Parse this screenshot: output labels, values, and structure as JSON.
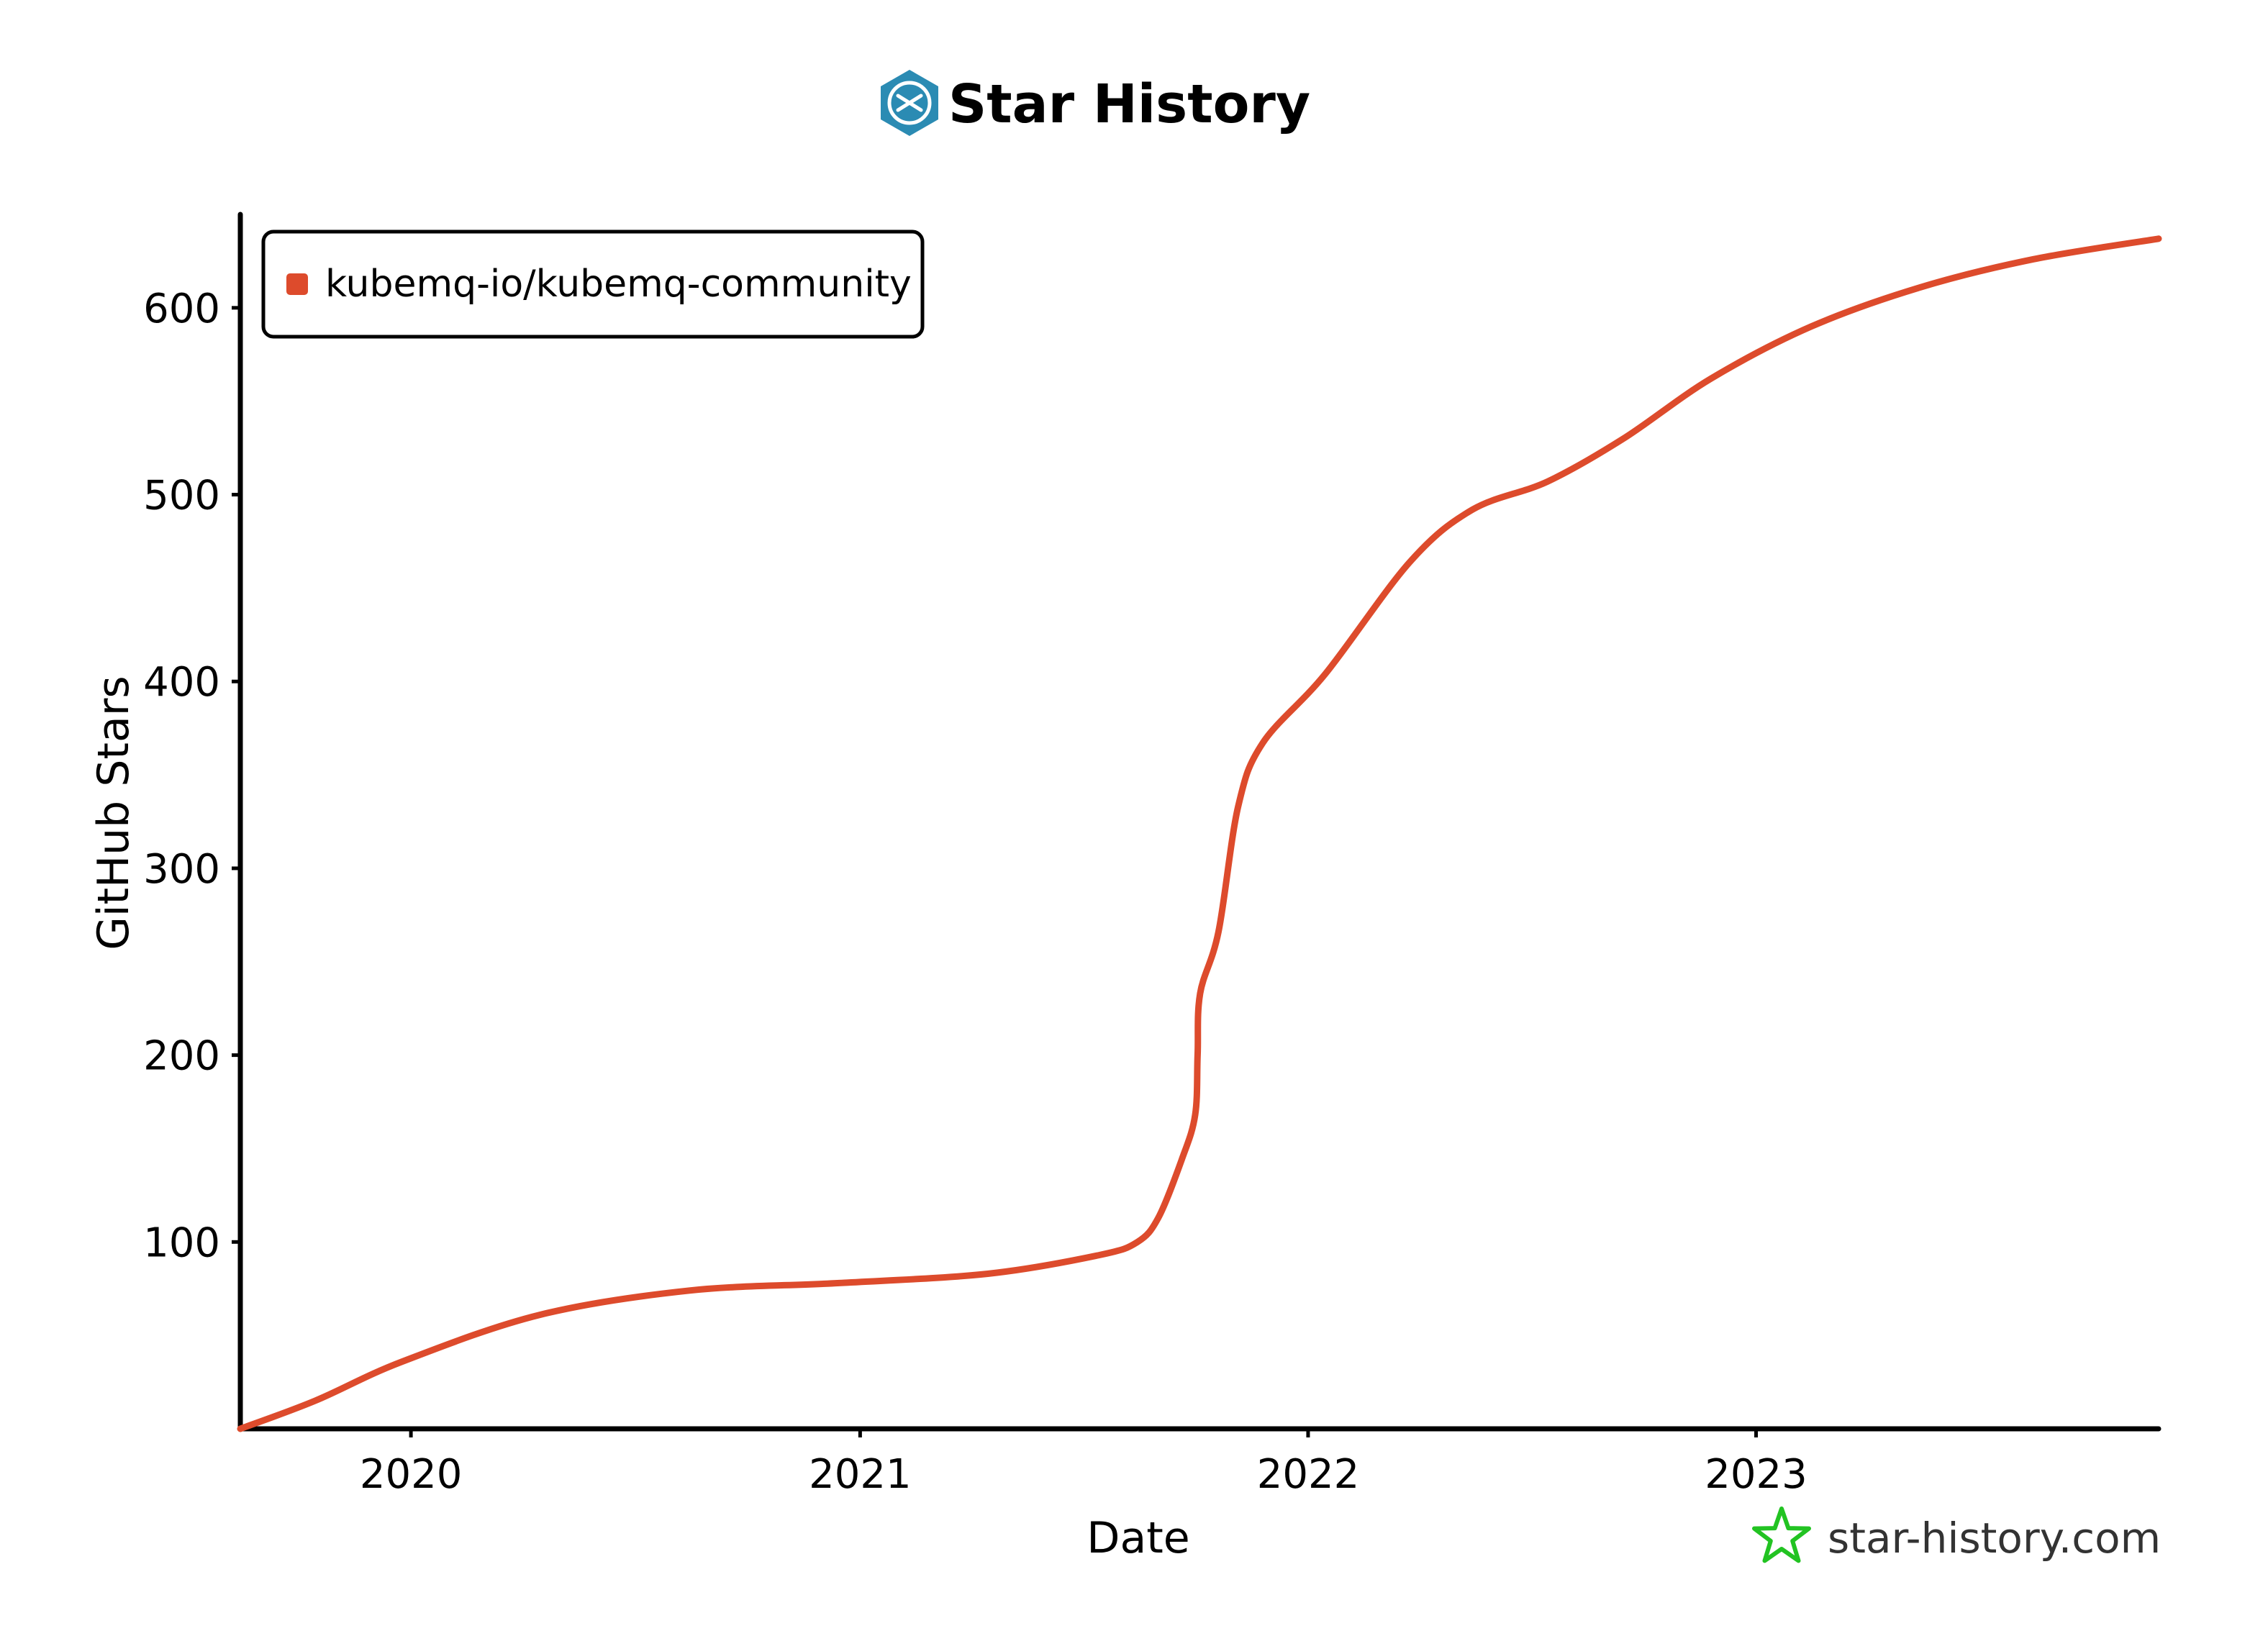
{
  "chart_data": {
    "type": "line",
    "title": "Star History",
    "xlabel": "Date",
    "ylabel": "GitHub Stars",
    "x_ticks": [
      "2020",
      "2021",
      "2022",
      "2023"
    ],
    "y_ticks": [
      100,
      200,
      300,
      400,
      500,
      600
    ],
    "ylim": [
      0,
      650
    ],
    "xlim": [
      "2019-08-15",
      "2023-11-25"
    ],
    "grid": false,
    "legend": "top-left",
    "series": [
      {
        "name": "kubemq-io/kubemq-community",
        "color": "#dd4b2c",
        "points": [
          {
            "x": "2019-08-15",
            "y": 0
          },
          {
            "x": "2019-10-15",
            "y": 15
          },
          {
            "x": "2019-12-25",
            "y": 36
          },
          {
            "x": "2020-04-15",
            "y": 61
          },
          {
            "x": "2020-08-15",
            "y": 74
          },
          {
            "x": "2020-12-15",
            "y": 78
          },
          {
            "x": "2021-04-15",
            "y": 83
          },
          {
            "x": "2021-07-15",
            "y": 93
          },
          {
            "x": "2021-08-15",
            "y": 100
          },
          {
            "x": "2021-09-01",
            "y": 113
          },
          {
            "x": "2021-09-20",
            "y": 144
          },
          {
            "x": "2021-10-01",
            "y": 168
          },
          {
            "x": "2021-10-03",
            "y": 200
          },
          {
            "x": "2021-10-05",
            "y": 233
          },
          {
            "x": "2021-10-20",
            "y": 266
          },
          {
            "x": "2021-11-05",
            "y": 333
          },
          {
            "x": "2021-11-25",
            "y": 367
          },
          {
            "x": "2022-01-15",
            "y": 404
          },
          {
            "x": "2022-03-25",
            "y": 464
          },
          {
            "x": "2022-05-15",
            "y": 492
          },
          {
            "x": "2022-07-15",
            "y": 507
          },
          {
            "x": "2022-09-15",
            "y": 530
          },
          {
            "x": "2022-11-25",
            "y": 562
          },
          {
            "x": "2023-02-15",
            "y": 590
          },
          {
            "x": "2023-05-15",
            "y": 611
          },
          {
            "x": "2023-08-15",
            "y": 626
          },
          {
            "x": "2023-11-25",
            "y": 637
          }
        ]
      }
    ]
  },
  "watermark": "star-history.com"
}
